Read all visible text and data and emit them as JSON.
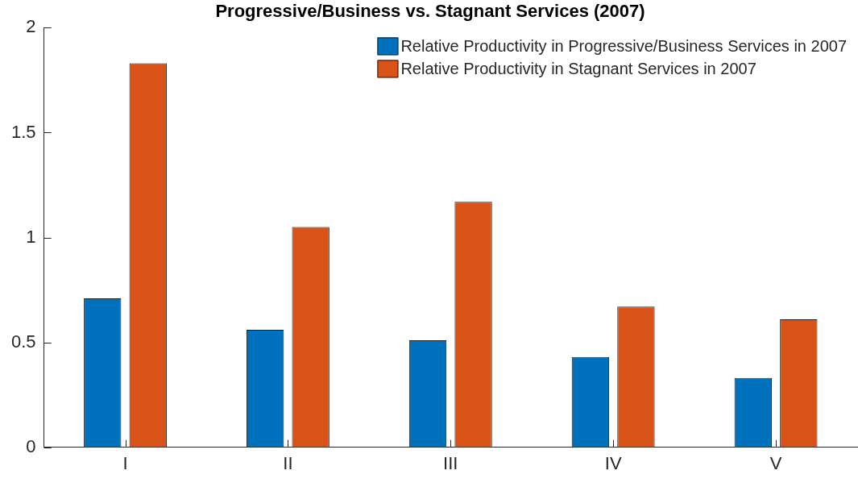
{
  "chart_data": {
    "type": "bar",
    "title": "Progressive/Business vs. Stagnant Services (2007)",
    "categories": [
      "I",
      "II",
      "III",
      "IV",
      "V"
    ],
    "series": [
      {
        "name": "Relative Productivity in Progressive/Business Services in 2007",
        "color": "#0072bd",
        "values": [
          0.71,
          0.56,
          0.51,
          0.43,
          0.33
        ]
      },
      {
        "name": "Relative Productivity in Stagnant Services in 2007",
        "color": "#d95319",
        "values": [
          1.83,
          1.05,
          1.17,
          0.67,
          0.61
        ]
      }
    ],
    "ylim": [
      0,
      2
    ],
    "yticks": [
      0,
      0.5,
      1,
      1.5,
      2
    ],
    "grid": false,
    "legend": "top right"
  }
}
